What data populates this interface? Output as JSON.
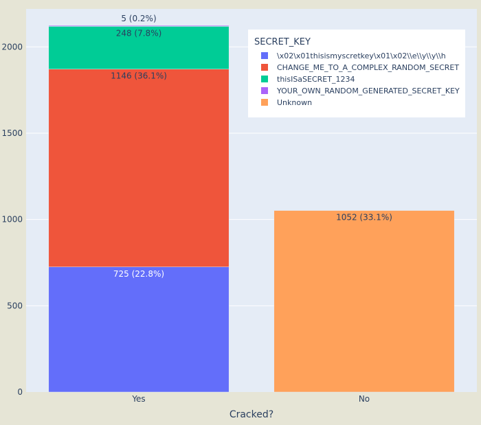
{
  "chart_data": {
    "type": "bar",
    "barmode": "stack",
    "categories": [
      "Yes",
      "No"
    ],
    "xlabel": "Cracked?",
    "ylabel": "",
    "ylim": [
      0,
      2220
    ],
    "yticks": [
      0,
      500,
      1000,
      1500,
      2000
    ],
    "legend": {
      "title": "SECRET_KEY",
      "placement": "top-right"
    },
    "series": [
      {
        "name": "\\x02\\x01thisismyscretkey\\x01\\x02\\\\e\\\\y\\\\y\\\\h",
        "color": "#636efa",
        "values": [
          725,
          0
        ],
        "labels": [
          "725 (22.8%)",
          ""
        ],
        "label_color": "#ffffff"
      },
      {
        "name": "CHANGE_ME_TO_A_COMPLEX_RANDOM_SECRET",
        "color": "#ef553b",
        "values": [
          1146,
          0
        ],
        "labels": [
          "1146 (36.1%)",
          ""
        ],
        "label_color": "#2a3f5f"
      },
      {
        "name": "thisISaSECRET_1234",
        "color": "#00cc96",
        "values": [
          248,
          0
        ],
        "labels": [
          "248 (7.8%)",
          ""
        ],
        "label_color": "#2a3f5f"
      },
      {
        "name": "YOUR_OWN_RANDOM_GENERATED_SECRET_KEY",
        "color": "#ab63fa",
        "values": [
          5,
          0
        ],
        "labels": [
          "5 (0.2%)",
          ""
        ],
        "label_color": "#2a3f5f"
      },
      {
        "name": "Unknown",
        "color": "#ffa15a",
        "values": [
          0,
          1052
        ],
        "labels": [
          "",
          "1052 (33.1%)"
        ],
        "label_color": "#2a3f5f"
      }
    ],
    "colors": {
      "page_background": "#e6e5d6",
      "plot_background": "#e5ecf6",
      "gridline": "#ffffff",
      "text": "#2a3f5f",
      "legend_background": "#ffffff"
    }
  }
}
